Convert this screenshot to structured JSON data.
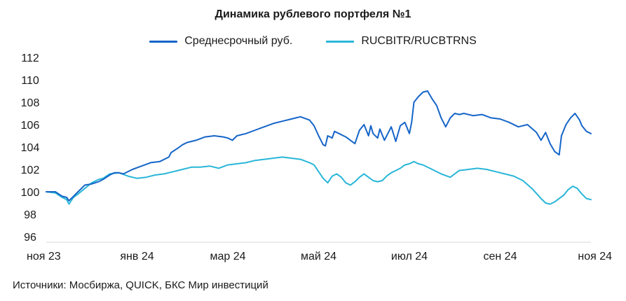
{
  "chart_data": {
    "type": "line",
    "title": "Динамика рублевого портфеля №1",
    "source": "Источники: Мосбиржа, QUICK, БКС Мир инвестиций",
    "ylim": [
      96,
      112
    ],
    "yticks": [
      96,
      98,
      100,
      102,
      104,
      106,
      108,
      110,
      112
    ],
    "xlim": [
      0,
      12
    ],
    "xticks": [
      {
        "label": "ноя 23",
        "x": 0
      },
      {
        "label": "янв 24",
        "x": 2
      },
      {
        "label": "мар 24",
        "x": 4
      },
      {
        "label": "май 24",
        "x": 6
      },
      {
        "label": "июл 24",
        "x": 8
      },
      {
        "label": "сен 24",
        "x": 10
      },
      {
        "label": "ноя 24",
        "x": 12
      }
    ],
    "grid": false,
    "series": [
      {
        "name": "Среднесрочный руб.",
        "color": "#1565c8",
        "x": [
          0,
          0.2,
          0.35,
          0.45,
          0.5,
          0.6,
          0.7,
          0.85,
          1.0,
          1.15,
          1.25,
          1.4,
          1.5,
          1.6,
          1.7,
          1.9,
          2.1,
          2.3,
          2.5,
          2.7,
          2.75,
          2.9,
          3.0,
          3.1,
          3.3,
          3.5,
          3.7,
          3.9,
          4.0,
          4.1,
          4.2,
          4.4,
          4.6,
          4.8,
          5.0,
          5.2,
          5.4,
          5.5,
          5.6,
          5.8,
          5.9,
          6.0,
          6.1,
          6.15,
          6.2,
          6.3,
          6.35,
          6.45,
          6.6,
          6.8,
          6.9,
          7.0,
          7.1,
          7.15,
          7.2,
          7.3,
          7.35,
          7.45,
          7.6,
          7.7,
          7.8,
          7.9,
          8.0,
          8.05,
          8.1,
          8.2,
          8.3,
          8.4,
          8.5,
          8.6,
          8.7,
          8.8,
          8.9,
          9.0,
          9.1,
          9.2,
          9.4,
          9.6,
          9.8,
          10.0,
          10.2,
          10.4,
          10.6,
          10.8,
          10.9,
          11.0,
          11.1,
          11.2,
          11.3,
          11.35,
          11.45,
          11.55,
          11.65,
          11.75,
          11.8,
          11.9,
          12.0
        ],
        "values": [
          100.0,
          100.0,
          99.6,
          99.5,
          99.2,
          99.6,
          100.0,
          100.6,
          100.7,
          100.9,
          101.1,
          101.5,
          101.7,
          101.7,
          101.6,
          102.0,
          102.3,
          102.6,
          102.7,
          103.1,
          103.5,
          103.9,
          104.2,
          104.4,
          104.6,
          104.9,
          105.0,
          104.9,
          104.8,
          104.6,
          105.0,
          105.2,
          105.5,
          105.8,
          106.1,
          106.3,
          106.5,
          106.6,
          106.7,
          106.4,
          105.9,
          105.0,
          104.2,
          104.1,
          105.0,
          104.8,
          105.4,
          105.2,
          104.9,
          104.3,
          105.5,
          106.0,
          105.0,
          105.9,
          105.2,
          104.8,
          105.6,
          104.6,
          105.8,
          104.5,
          105.9,
          106.2,
          105.2,
          106.2,
          108.0,
          108.5,
          108.9,
          109.0,
          108.3,
          107.7,
          106.6,
          105.8,
          106.6,
          107.0,
          106.9,
          107.0,
          106.8,
          106.9,
          106.6,
          106.5,
          106.2,
          105.8,
          106.0,
          105.3,
          104.6,
          105.3,
          104.3,
          103.6,
          103.3,
          105.0,
          106.0,
          106.6,
          107.0,
          106.4,
          105.9,
          105.4,
          105.2
        ]
      },
      {
        "name": "RUCBITR/RUCBTRNS",
        "color": "#29b6d8",
        "x": [
          0,
          0.2,
          0.35,
          0.45,
          0.5,
          0.6,
          0.7,
          0.85,
          1.0,
          1.15,
          1.25,
          1.4,
          1.6,
          1.8,
          2.0,
          2.2,
          2.4,
          2.6,
          2.8,
          3.0,
          3.2,
          3.4,
          3.6,
          3.8,
          4.0,
          4.2,
          4.4,
          4.6,
          4.8,
          5.0,
          5.2,
          5.4,
          5.6,
          5.8,
          5.9,
          6.0,
          6.1,
          6.2,
          6.3,
          6.4,
          6.5,
          6.6,
          6.7,
          6.8,
          6.9,
          7.0,
          7.1,
          7.2,
          7.3,
          7.4,
          7.5,
          7.6,
          7.7,
          7.8,
          7.9,
          8.0,
          8.1,
          8.2,
          8.3,
          8.5,
          8.7,
          8.9,
          9.1,
          9.3,
          9.5,
          9.7,
          9.9,
          10.1,
          10.3,
          10.5,
          10.7,
          10.9,
          11.0,
          11.1,
          11.2,
          11.3,
          11.4,
          11.5,
          11.6,
          11.7,
          11.8,
          11.9,
          12.0
        ],
        "values": [
          100.0,
          99.9,
          99.5,
          99.3,
          98.9,
          99.5,
          99.8,
          100.3,
          100.8,
          101.1,
          101.2,
          101.6,
          101.7,
          101.4,
          101.2,
          101.3,
          101.5,
          101.6,
          101.8,
          102.0,
          102.2,
          102.2,
          102.3,
          102.1,
          102.4,
          102.5,
          102.6,
          102.8,
          102.9,
          103.0,
          103.1,
          103.0,
          102.9,
          102.6,
          102.4,
          101.8,
          101.2,
          100.8,
          101.4,
          101.6,
          101.3,
          100.8,
          100.6,
          100.9,
          101.3,
          101.6,
          101.3,
          101.0,
          100.9,
          101.0,
          101.4,
          101.7,
          101.9,
          102.1,
          102.4,
          102.5,
          102.7,
          102.5,
          102.4,
          102.0,
          101.6,
          101.3,
          101.9,
          102.0,
          102.1,
          102.0,
          101.8,
          101.6,
          101.4,
          101.0,
          100.3,
          99.4,
          99.0,
          98.9,
          99.1,
          99.4,
          99.7,
          100.2,
          100.5,
          100.3,
          99.8,
          99.4,
          99.3
        ]
      }
    ]
  }
}
